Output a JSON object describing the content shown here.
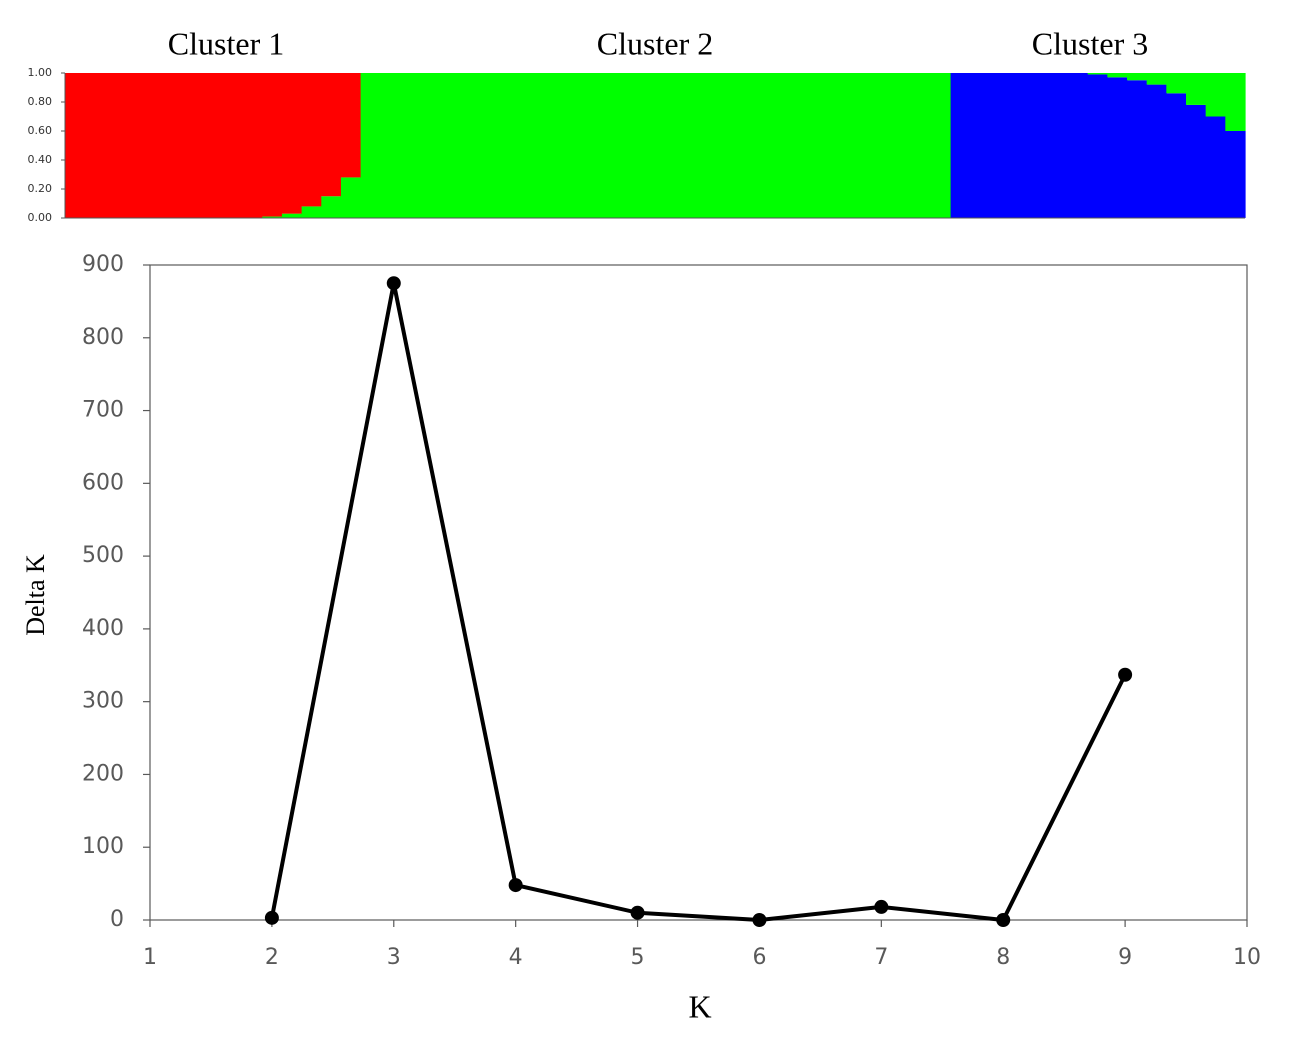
{
  "chart_data": [
    {
      "type": "structure",
      "cluster_labels": [
        "Cluster  1",
        "Cluster  2",
        "Cluster  3"
      ],
      "categories": [
        null,
        null,
        null,
        null,
        null,
        null,
        null,
        null,
        null,
        null,
        null,
        null,
        null,
        null,
        null,
        null,
        null,
        null,
        null,
        null,
        null,
        null,
        null,
        null,
        null,
        null,
        null,
        null,
        null,
        null,
        null,
        null,
        null,
        null,
        null,
        null,
        null,
        null,
        null,
        null,
        null,
        null,
        null,
        null,
        null,
        null,
        null,
        null,
        null,
        null,
        null,
        null,
        null,
        null,
        null,
        null,
        null,
        null,
        null,
        null
      ],
      "ylim": [
        0,
        1
      ],
      "yticks": [
        {
          "value": 0,
          "label": "0.00"
        },
        {
          "value": 0.2,
          "label": "0.20"
        },
        {
          "value": 0.4,
          "label": "0.40"
        },
        {
          "value": 0.6,
          "label": "0.60"
        },
        {
          "value": 0.8,
          "label": "0.80"
        },
        {
          "value": 1,
          "label": "1.00"
        }
      ],
      "series": [
        {
          "color": "#0000ff",
          "values": [
            0,
            0,
            0,
            0,
            0,
            0,
            0,
            0,
            0,
            0,
            0,
            0,
            0,
            0,
            0,
            0,
            0,
            0,
            0,
            0,
            0,
            0,
            0,
            0,
            0,
            0,
            0,
            0,
            0,
            0,
            0,
            0,
            0,
            0,
            0,
            0,
            0,
            0,
            0,
            0,
            0,
            0,
            0,
            0,
            0,
            1,
            1,
            1,
            1,
            1,
            1,
            1,
            0.99,
            0.97,
            0.95,
            0.92,
            0.86,
            0.78,
            0.7,
            0.6
          ]
        },
        {
          "color": "#00ff00",
          "values": [
            0,
            0,
            0,
            0,
            0,
            0,
            0,
            0,
            0,
            0,
            0.01,
            0.03,
            0.08,
            0.15,
            0.28,
            1,
            1,
            1,
            1,
            1,
            1,
            1,
            1,
            1,
            1,
            1,
            1,
            1,
            1,
            1,
            1,
            1,
            1,
            1,
            1,
            1,
            1,
            1,
            1,
            1,
            1,
            1,
            1,
            1,
            1,
            0,
            0,
            0,
            0,
            0,
            0,
            0,
            0.01,
            0.03,
            0.05,
            0.08,
            0.14,
            0.22,
            0.3,
            0.4
          ]
        },
        {
          "color": "#ff0000",
          "values": [
            1,
            1,
            1,
            1,
            1,
            1,
            1,
            1,
            1,
            1,
            0.99,
            0.97,
            0.92,
            0.85,
            0.72,
            0,
            0,
            0,
            0,
            0,
            0,
            0,
            0,
            0,
            0,
            0,
            0,
            0,
            0,
            0,
            0,
            0,
            0,
            0,
            0,
            0,
            0,
            0,
            0,
            0,
            0,
            0,
            0,
            0,
            0,
            0,
            0,
            0,
            0,
            0,
            0,
            0,
            0,
            0,
            0,
            0,
            0,
            0,
            0,
            0
          ]
        }
      ]
    },
    {
      "type": "line",
      "x_label": "K",
      "y_label": "Delta K",
      "x": [
        2,
        3,
        4,
        5,
        6,
        7,
        8,
        9
      ],
      "values": [
        3,
        875,
        48,
        10,
        0,
        18,
        0,
        337
      ],
      "color": "#000000",
      "xlim": [
        1,
        10
      ],
      "xticks": [
        1,
        2,
        3,
        4,
        5,
        6,
        7,
        8,
        9,
        10
      ],
      "ylim": [
        0,
        900
      ],
      "yticks": [
        0,
        100,
        200,
        300,
        400,
        500,
        600,
        700,
        800,
        900
      ]
    }
  ]
}
